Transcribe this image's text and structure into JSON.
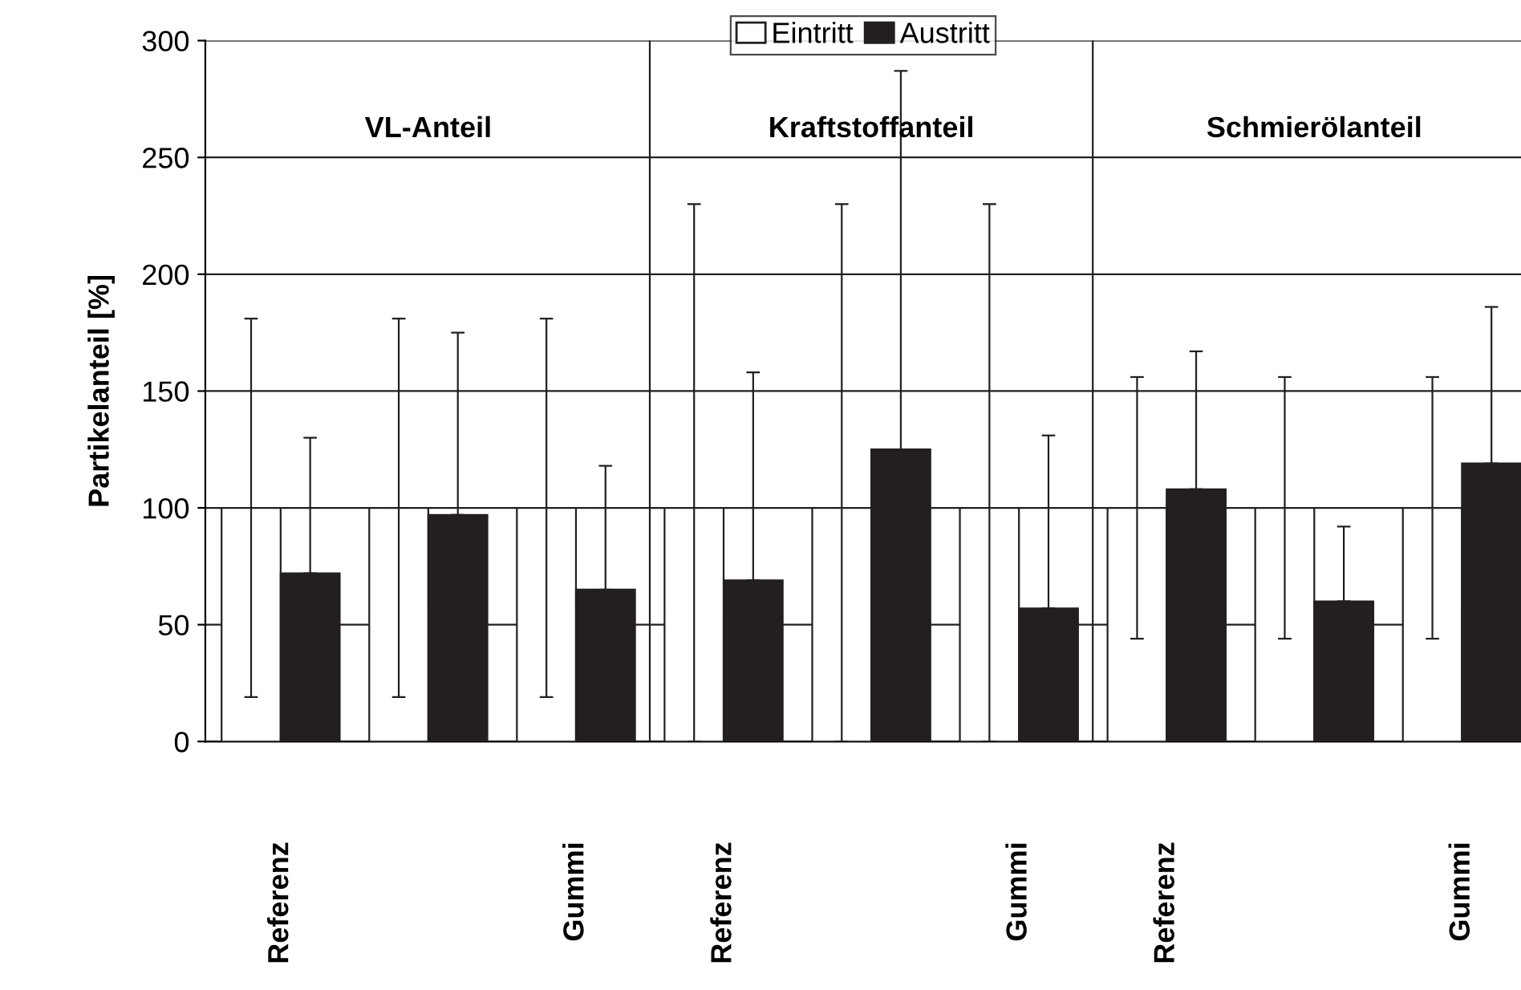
{
  "chart_data": {
    "type": "bar",
    "ylabel": "Partikelanteil [%]",
    "categories": [
      "Referenz",
      null,
      "Gummi",
      "Referenz",
      null,
      "Gummi",
      "Referenz",
      null,
      "Gummi"
    ],
    "series": [
      {
        "name": "Eintritt",
        "color": "#ffffff",
        "values": [
          100,
          100,
          100,
          100,
          100,
          100,
          100,
          100,
          100
        ],
        "errors": [
          [
            19,
            181
          ],
          [
            19,
            181
          ],
          [
            19,
            181
          ],
          [
            0,
            230
          ],
          [
            0,
            230
          ],
          [
            0,
            230
          ],
          [
            44,
            156
          ],
          [
            44,
            156
          ],
          [
            44,
            156
          ]
        ]
      },
      {
        "name": "Austritt",
        "color": "#231f20",
        "values": [
          72,
          97,
          65,
          69,
          125,
          57,
          108,
          60,
          119
        ],
        "errors": [
          [
            72,
            130
          ],
          [
            97,
            175
          ],
          [
            65,
            118
          ],
          [
            69,
            158
          ],
          [
            125,
            287
          ],
          [
            57,
            131
          ],
          [
            108,
            167
          ],
          [
            60,
            92
          ],
          [
            119,
            186
          ]
        ]
      }
    ],
    "annotations": [
      "VL-Anteil",
      "Kraftstoffanteil",
      "Schmierölanteil"
    ],
    "ylim": [
      0,
      300
    ],
    "yticks": [
      0,
      50,
      100,
      150,
      200,
      250,
      300
    ],
    "grid": "y",
    "legend": "top"
  }
}
